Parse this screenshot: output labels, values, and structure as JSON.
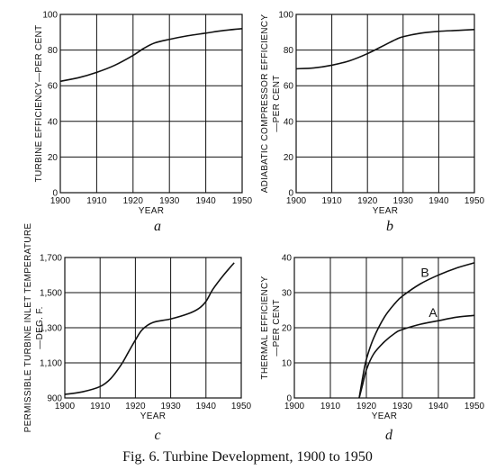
{
  "chart_data": [
    {
      "id": "a",
      "type": "line",
      "panel_label": "a",
      "xlabel": "YEAR",
      "ylabel": "TURBINE EFFICIENCY—PER CENT",
      "xlim": [
        1900,
        1950
      ],
      "ylim": [
        0,
        100
      ],
      "x_ticks": [
        "1900",
        "1910",
        "1920",
        "1930",
        "1940",
        "1950"
      ],
      "y_ticks": [
        "0",
        "20",
        "40",
        "60",
        "80",
        "100"
      ],
      "grid": true,
      "series": [
        {
          "x": [
            1900,
            1905,
            1910,
            1915,
            1920,
            1923,
            1926,
            1930,
            1935,
            1940,
            1945,
            1950
          ],
          "y": [
            62.5,
            64.5,
            67.5,
            71.5,
            77,
            81,
            84,
            86,
            88,
            89.5,
            91,
            92
          ]
        }
      ]
    },
    {
      "id": "b",
      "type": "line",
      "panel_label": "b",
      "xlabel": "YEAR",
      "ylabel": "ADIABATIC COMPRESSOR EFFICIENCY—PER CENT",
      "xlim": [
        1900,
        1950
      ],
      "ylim": [
        0,
        100
      ],
      "x_ticks": [
        "1900",
        "1910",
        "1920",
        "1930",
        "1940",
        "1950"
      ],
      "y_ticks": [
        "0",
        "20",
        "40",
        "60",
        "80",
        "100"
      ],
      "grid": true,
      "series": [
        {
          "x": [
            1900,
            1905,
            1910,
            1915,
            1920,
            1925,
            1928,
            1930,
            1935,
            1940,
            1945,
            1950
          ],
          "y": [
            69.5,
            70,
            71.5,
            74,
            78,
            83,
            86,
            87.5,
            89.5,
            90.5,
            91,
            91.5
          ]
        }
      ]
    },
    {
      "id": "c",
      "type": "line",
      "panel_label": "c",
      "xlabel": "YEAR",
      "ylabel": "PERMISSIBLE TURBINE INLET TEMPERATURE—DEG. F.",
      "xlim": [
        1900,
        1950
      ],
      "ylim": [
        900,
        1700
      ],
      "x_ticks": [
        "1900",
        "1910",
        "1920",
        "1930",
        "1940",
        "1950"
      ],
      "y_ticks": [
        "900",
        "1,100",
        "1,300",
        "1,500",
        "1,700"
      ],
      "y_tick_values": [
        900,
        1100,
        1300,
        1500,
        1700
      ],
      "grid": true,
      "series": [
        {
          "x": [
            1900,
            1905,
            1910,
            1913,
            1916,
            1918,
            1920,
            1922,
            1925,
            1930,
            1935,
            1938,
            1940,
            1942,
            1945,
            1948
          ],
          "y": [
            920,
            935,
            965,
            1010,
            1090,
            1160,
            1230,
            1290,
            1330,
            1350,
            1380,
            1410,
            1450,
            1520,
            1600,
            1670
          ]
        }
      ]
    },
    {
      "id": "d",
      "type": "line",
      "panel_label": "d",
      "xlabel": "YEAR",
      "ylabel": "THERMAL EFFICIENCY—PER CENT",
      "xlim": [
        1900,
        1950
      ],
      "ylim": [
        0,
        40
      ],
      "x_ticks": [
        "1900",
        "1910",
        "1920",
        "1930",
        "1940",
        "1950"
      ],
      "y_ticks": [
        "0",
        "10",
        "20",
        "30",
        "40"
      ],
      "grid": true,
      "series": [
        {
          "name": "A",
          "x": [
            1918,
            1919,
            1920,
            1922,
            1925,
            1928,
            1930,
            1935,
            1940,
            1945,
            1950
          ],
          "y": [
            0,
            4,
            8,
            12.5,
            16,
            18.5,
            19.5,
            21,
            22,
            23,
            23.5
          ]
        },
        {
          "name": "B",
          "x": [
            1918,
            1919,
            1920,
            1922,
            1925,
            1928,
            1930,
            1935,
            1940,
            1945,
            1950
          ],
          "y": [
            0,
            6,
            11,
            17,
            23,
            27,
            29,
            32.5,
            35,
            37,
            38.5
          ]
        }
      ]
    }
  ],
  "caption": "Fig. 6.  Turbine Development, 1900 to 1950"
}
